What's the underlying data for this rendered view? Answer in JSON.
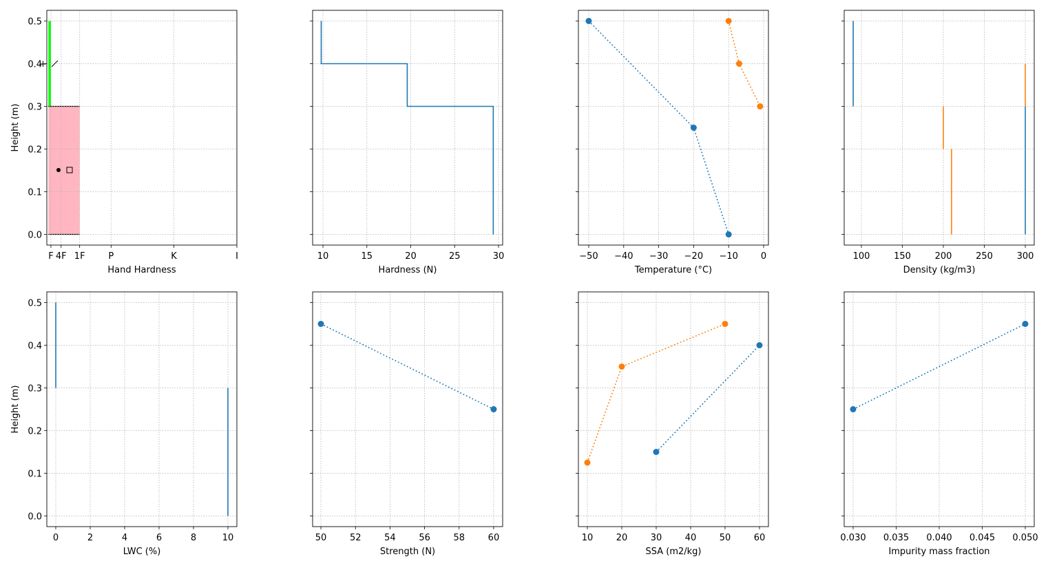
{
  "chart_data": [
    {
      "type": "hardness-profile",
      "xlabel": "Hand Hardness",
      "ylabel": "Height (m)",
      "show_ytick_labels": true,
      "grid": true,
      "xlim": [
        -10,
        1200
      ],
      "xticks": [
        {
          "value": 16,
          "label": "F"
        },
        {
          "value": 81,
          "label": "4F"
        },
        {
          "value": 199,
          "label": "1F"
        },
        {
          "value": 399,
          "label": "P"
        },
        {
          "value": 799,
          "label": "K"
        },
        {
          "value": 1200,
          "label": "I"
        }
      ],
      "ylim": [
        -0.025,
        0.525
      ],
      "yticks": [
        {
          "value": 0,
          "label": "0.0"
        },
        0.1,
        0.2,
        0.3,
        0.4,
        0.5
      ],
      "layers": [
        {
          "bottom": 0.3,
          "top": 0.5,
          "hardness": 16,
          "color": "#00ff00"
        },
        {
          "bottom": 0,
          "top": 0.3,
          "hardness": 199,
          "color": "#ffb6c1",
          "edgecolor": "#000000"
        }
      ]
    },
    {
      "type": "line",
      "xlabel": "Hardness (N)",
      "show_ytick_labels": false,
      "grid": true,
      "xlim": [
        8.82,
        30.47
      ],
      "xticks": [
        10,
        15,
        20,
        25,
        30
      ],
      "ylim": [
        -0.025,
        0.525
      ],
      "yticks": [
        0,
        0.1,
        0.2,
        0.3,
        0.4,
        0.5
      ],
      "series": [
        {
          "color": "#1f77b4",
          "linestyle": "solid",
          "marker": false,
          "x": [
            9.8,
            9.8,
            19.6,
            19.6,
            29.4,
            29.4
          ],
          "y": [
            0.5,
            0.4,
            0.4,
            0.3,
            0.3,
            0
          ]
        }
      ]
    },
    {
      "type": "line",
      "xlabel": "Temperature (°C)",
      "show_ytick_labels": false,
      "grid": true,
      "xlim": [
        -52.95,
        1.38
      ],
      "xticks": [
        {
          "value": -50,
          "label": "−50"
        },
        {
          "value": -40,
          "label": "−40"
        },
        {
          "value": -30,
          "label": "−30"
        },
        {
          "value": -20,
          "label": "−20"
        },
        {
          "value": -10,
          "label": "−10"
        },
        0
      ],
      "ylim": [
        -0.025,
        0.525
      ],
      "yticks": [
        0,
        0.1,
        0.2,
        0.3,
        0.4,
        0.5
      ],
      "series": [
        {
          "color": "#1f77b4",
          "linestyle": "dotted",
          "marker": true,
          "x": [
            -50,
            -20,
            -10
          ],
          "y": [
            0.5,
            0.25,
            0
          ]
        },
        {
          "color": "#ff7f0e",
          "linestyle": "dotted",
          "marker": true,
          "x": [
            -10,
            -7,
            -1
          ],
          "y": [
            0.5,
            0.4,
            0.3
          ]
        }
      ]
    },
    {
      "type": "line",
      "xlabel": "Density (kg/m3)",
      "show_ytick_labels": false,
      "grid": true,
      "xlim": [
        79,
        310.9
      ],
      "xticks": [
        100,
        150,
        200,
        250,
        300
      ],
      "ylim": [
        -0.025,
        0.525
      ],
      "yticks": [
        0,
        0.1,
        0.2,
        0.3,
        0.4,
        0.5
      ],
      "series": [
        {
          "color": "#1f77b4",
          "linestyle": "solid",
          "marker": false,
          "x": [
            90,
            90,
            null,
            300,
            300
          ],
          "y": [
            0.5,
            0.3,
            null,
            0.3,
            0
          ]
        },
        {
          "color": "#ff7f0e",
          "linestyle": "solid",
          "marker": false,
          "x": [
            300,
            300,
            null,
            200,
            200,
            null,
            210,
            210
          ],
          "y": [
            0.4,
            0.3,
            null,
            0.3,
            0.2,
            null,
            0.2,
            0
          ]
        }
      ]
    },
    {
      "type": "line",
      "xlabel": "LWC (%)",
      "ylabel": "Height (m)",
      "show_ytick_labels": true,
      "grid": true,
      "xlim": [
        -0.52,
        10.52
      ],
      "xticks": [
        0,
        2,
        4,
        6,
        8,
        10
      ],
      "ylim": [
        -0.025,
        0.525
      ],
      "yticks": [
        {
          "value": 0,
          "label": "0.0"
        },
        0.1,
        0.2,
        0.3,
        0.4,
        0.5
      ],
      "series": [
        {
          "color": "#1f77b4",
          "linestyle": "solid",
          "marker": false,
          "x": [
            0,
            0,
            null,
            10,
            10
          ],
          "y": [
            0.5,
            0.3,
            null,
            0.3,
            0
          ]
        }
      ]
    },
    {
      "type": "line",
      "xlabel": "Strength (N)",
      "show_ytick_labels": false,
      "grid": true,
      "xlim": [
        49.52,
        60.52
      ],
      "xticks": [
        50,
        52,
        54,
        56,
        58,
        60
      ],
      "ylim": [
        -0.025,
        0.525
      ],
      "yticks": [
        0,
        0.1,
        0.2,
        0.3,
        0.4,
        0.5
      ],
      "series": [
        {
          "color": "#1f77b4",
          "linestyle": "dotted",
          "marker": true,
          "x": [
            50,
            60
          ],
          "y": [
            0.45,
            0.25
          ]
        }
      ]
    },
    {
      "type": "line",
      "xlabel": "SSA (m2/kg)",
      "show_ytick_labels": false,
      "grid": true,
      "xlim": [
        7.4,
        62.6
      ],
      "xticks": [
        10,
        20,
        30,
        40,
        50,
        60
      ],
      "ylim": [
        -0.025,
        0.525
      ],
      "yticks": [
        0,
        0.1,
        0.2,
        0.3,
        0.4,
        0.5
      ],
      "series": [
        {
          "color": "#1f77b4",
          "linestyle": "dotted",
          "marker": true,
          "x": [
            30,
            60
          ],
          "y": [
            0.15,
            0.4
          ]
        },
        {
          "color": "#ff7f0e",
          "linestyle": "dotted",
          "marker": true,
          "x": [
            10,
            20,
            50
          ],
          "y": [
            0.125,
            0.35,
            0.45
          ]
        }
      ]
    },
    {
      "type": "line",
      "xlabel": "Impurity mass fraction",
      "show_ytick_labels": false,
      "grid": true,
      "xlim": [
        0.02896,
        0.05104
      ],
      "xticks": [
        {
          "value": 0.03,
          "label": "0.030"
        },
        {
          "value": 0.035,
          "label": "0.035"
        },
        {
          "value": 0.04,
          "label": "0.040"
        },
        {
          "value": 0.045,
          "label": "0.045"
        },
        {
          "value": 0.05,
          "label": "0.050"
        }
      ],
      "ylim": [
        -0.025,
        0.525
      ],
      "yticks": [
        0,
        0.1,
        0.2,
        0.3,
        0.4,
        0.5
      ],
      "series": [
        {
          "color": "#1f77b4",
          "linestyle": "dotted",
          "marker": true,
          "x": [
            0.03,
            0.05
          ],
          "y": [
            0.25,
            0.45
          ]
        }
      ]
    }
  ]
}
